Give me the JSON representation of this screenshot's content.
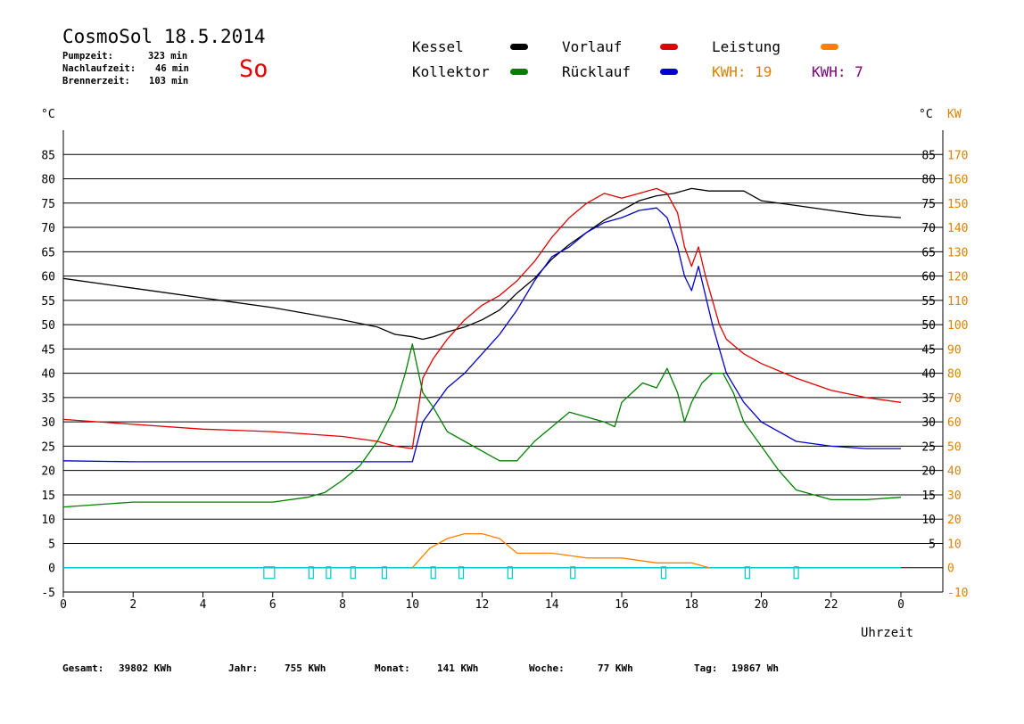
{
  "header": {
    "title": "CosmoSol 18.5.2014",
    "stats": [
      {
        "label": "Pumpzeit:",
        "value": "323 min"
      },
      {
        "label": "Nachlaufzeit:",
        "value": "46 min"
      },
      {
        "label": "Brennerzeit:",
        "value": "103 min"
      }
    ],
    "day": "So"
  },
  "legend": {
    "kessel": "Kessel",
    "kollektor": "Kollektor",
    "vorlauf": "Vorlauf",
    "ruecklauf": "Rücklauf",
    "leistung": "Leistung",
    "kwh_orange": "KWH: 19",
    "kwh_purple": "KWH: 7",
    "colors": {
      "kessel": "#000000",
      "kollektor": "#008000",
      "vorlauf": "#e00000",
      "ruecklauf": "#0000d0",
      "leistung": "#ff8000",
      "kwh_purple": "#800080",
      "pump": "#00c8c8"
    }
  },
  "footer": [
    {
      "label": "Gesamt:",
      "value": "39802 KWh"
    },
    {
      "label": "Jahr:",
      "value": "755 KWh"
    },
    {
      "label": "Monat:",
      "value": "141 KWh"
    },
    {
      "label": "Woche:",
      "value": "77 KWh"
    },
    {
      "label": "Tag:",
      "value": "19867 Wh"
    }
  ],
  "chart_data": {
    "type": "line",
    "xlabel": "Uhrzeit",
    "ylabel_left": "°C",
    "ylabel_right_temp": "°C",
    "ylabel_right_power": "KW",
    "xlim": [
      0,
      24
    ],
    "ylim": [
      -5,
      90
    ],
    "x_ticks": [
      "0",
      "2",
      "4",
      "6",
      "8",
      "10",
      "12",
      "14",
      "16",
      "18",
      "20",
      "22",
      "0"
    ],
    "y_ticks_left": [
      "-5",
      "0",
      "5",
      "10",
      "15",
      "20",
      "25",
      "30",
      "35",
      "40",
      "45",
      "50",
      "55",
      "60",
      "65",
      "70",
      "75",
      "80",
      "85"
    ],
    "y_ticks_right_temp": [
      "5",
      "10",
      "15",
      "20",
      "25",
      "30",
      "35",
      "40",
      "45",
      "50",
      "55",
      "60",
      "65",
      "70",
      "75",
      "80",
      "85"
    ],
    "y_ticks_right_power": [
      "-10",
      "0",
      "10",
      "20",
      "30",
      "40",
      "50",
      "60",
      "70",
      "80",
      "90",
      "100",
      "110",
      "120",
      "130",
      "140",
      "150",
      "160",
      "170"
    ],
    "grid": "horizontal",
    "series": [
      {
        "name": "Kessel",
        "color": "#000000",
        "x": [
          0,
          2,
          4,
          6,
          8,
          9,
          9.5,
          10,
          10.3,
          10.6,
          11,
          11.5,
          12,
          12.5,
          13,
          13.5,
          14,
          14.5,
          15,
          15.5,
          16,
          16.5,
          17,
          17.5,
          18,
          18.5,
          19,
          19.5,
          20,
          21,
          22,
          23,
          24
        ],
        "y": [
          59.5,
          57.5,
          55.5,
          53.5,
          51,
          49.5,
          48,
          47.5,
          47,
          47.5,
          48.5,
          49.5,
          51,
          53,
          56.5,
          59.5,
          63.5,
          66.5,
          69,
          71.5,
          73.5,
          75.5,
          76.5,
          77,
          78,
          77.5,
          77.5,
          77.5,
          75.5,
          74.5,
          73.5,
          72.5,
          72
        ]
      },
      {
        "name": "Vorlauf",
        "color": "#e00000",
        "x": [
          0,
          2,
          4,
          6,
          8,
          9,
          9.5,
          10,
          10.3,
          10.6,
          11,
          11.5,
          12,
          12.5,
          13,
          13.5,
          14,
          14.5,
          15,
          15.5,
          16,
          16.5,
          17,
          17.3,
          17.6,
          17.8,
          18,
          18.2,
          18.4,
          18.6,
          18.8,
          19,
          19.5,
          20,
          21,
          22,
          23,
          24
        ],
        "y": [
          30.5,
          29.5,
          28.5,
          28,
          27,
          26,
          25,
          24.5,
          39,
          43,
          47,
          51,
          54,
          56,
          59,
          63,
          68,
          72,
          75,
          77,
          76,
          77,
          78,
          77,
          73,
          66,
          62,
          66,
          60,
          55,
          50,
          47,
          44,
          42,
          39,
          36.5,
          35,
          34
        ]
      },
      {
        "name": "Rücklauf",
        "color": "#0000d0",
        "x": [
          0,
          2,
          4,
          6,
          8,
          9,
          9.5,
          10,
          10.3,
          10.6,
          11,
          11.5,
          12,
          12.5,
          13,
          13.5,
          14,
          14.5,
          15,
          15.5,
          16,
          16.5,
          17,
          17.3,
          17.6,
          17.8,
          18,
          18.2,
          18.4,
          18.6,
          18.8,
          19,
          19.5,
          20,
          21,
          22,
          23,
          24
        ],
        "y": [
          22,
          21.8,
          21.8,
          21.8,
          21.8,
          21.8,
          21.8,
          21.8,
          30,
          33,
          37,
          40,
          44,
          48,
          53,
          59,
          64,
          66,
          69,
          71,
          72,
          73.5,
          74,
          72,
          66,
          60,
          57,
          62,
          56,
          50,
          45,
          40,
          34,
          30,
          26,
          25,
          24.5,
          24.5
        ]
      },
      {
        "name": "Kollektor",
        "color": "#008000",
        "x": [
          0,
          1,
          2,
          3,
          4,
          5,
          6,
          7,
          7.5,
          8,
          8.5,
          9,
          9.5,
          9.8,
          10,
          10.3,
          10.6,
          11,
          11.5,
          12,
          12.5,
          13,
          13.5,
          14,
          14.5,
          15,
          15.5,
          15.8,
          16,
          16.3,
          16.6,
          17,
          17.3,
          17.6,
          17.8,
          18,
          18.3,
          18.6,
          18.9,
          19.2,
          19.5,
          20,
          20.5,
          21,
          22,
          23,
          24
        ],
        "y": [
          12.5,
          13,
          13.5,
          13.5,
          13.5,
          13.5,
          13.5,
          14.5,
          15.5,
          18,
          21,
          26,
          33,
          40,
          46,
          36,
          33,
          28,
          26,
          24,
          22,
          22,
          26,
          29,
          32,
          31,
          30,
          29,
          34,
          36,
          38,
          37,
          41,
          36,
          30,
          34,
          38,
          40,
          40,
          36,
          30,
          25,
          20,
          16,
          14,
          14,
          14.5
        ]
      },
      {
        "name": "Leistung",
        "color": "#ff8000",
        "x": [
          10,
          10.5,
          11,
          11.5,
          12,
          12.5,
          13,
          14,
          15,
          16,
          17,
          17.5,
          18,
          18.5
        ],
        "y": [
          0,
          4,
          6,
          7,
          7,
          6,
          3,
          3,
          2,
          2,
          1,
          1,
          1,
          0
        ]
      }
    ],
    "pump_markers_hours": [
      5.9,
      7.1,
      7.6,
      8.3,
      9.2,
      10.6,
      11.4,
      12.8,
      14.6,
      17.2,
      19.6,
      21.0
    ]
  }
}
